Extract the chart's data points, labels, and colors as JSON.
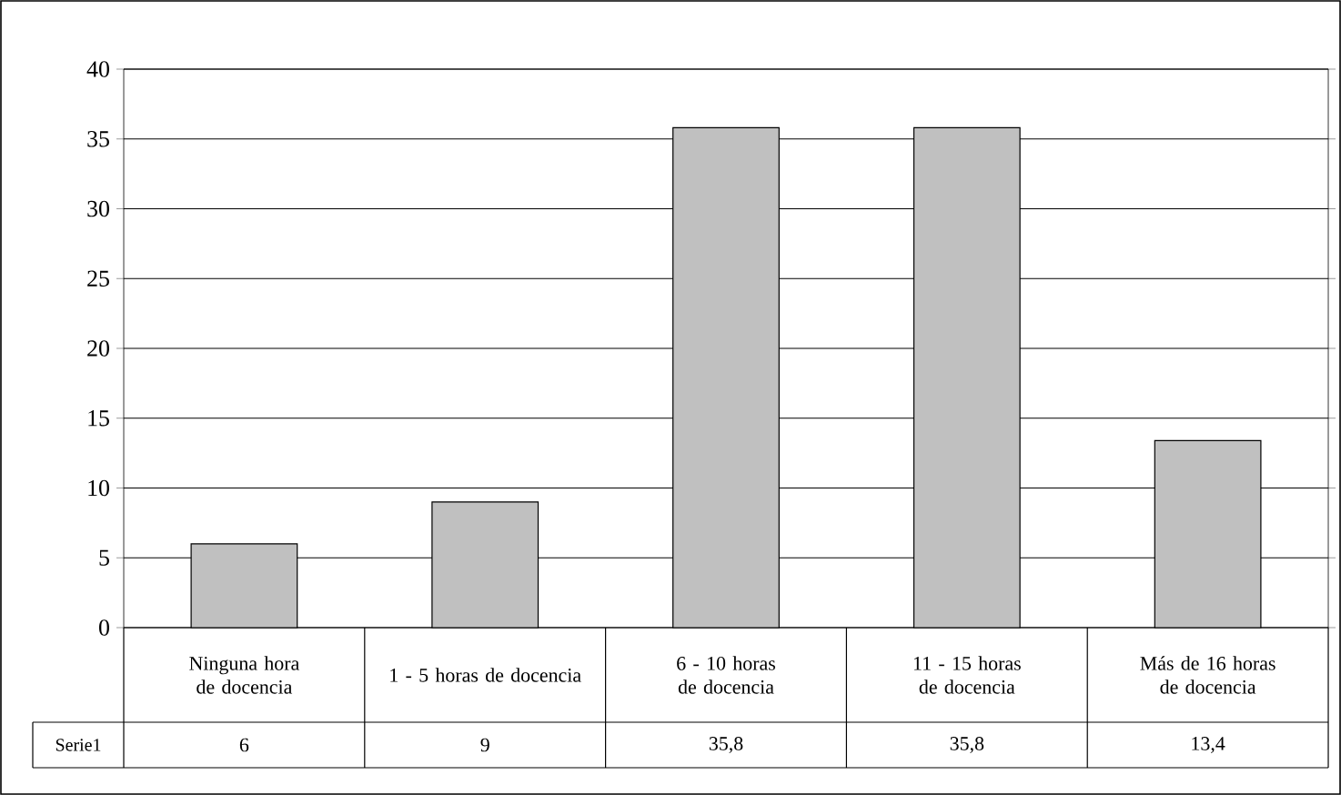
{
  "chart_data": {
    "type": "bar",
    "categories": [
      "Ninguna hora de docencia",
      "1 - 5 horas de docencia",
      "6 - 10 horas de docencia",
      "11 - 15 horas de docencia",
      "Más de 16 horas de docencia"
    ],
    "series": [
      {
        "name": "Serie1",
        "color": "#c0c0c0",
        "values": [
          6,
          9,
          35.8,
          35.8,
          13.4
        ],
        "value_labels": [
          "6",
          "9",
          "35,8",
          "35,8",
          "13,4"
        ]
      }
    ],
    "ylim": [
      0,
      40
    ],
    "yticks": [
      0,
      5,
      10,
      15,
      20,
      25,
      30,
      35,
      40
    ],
    "grid": "y"
  }
}
